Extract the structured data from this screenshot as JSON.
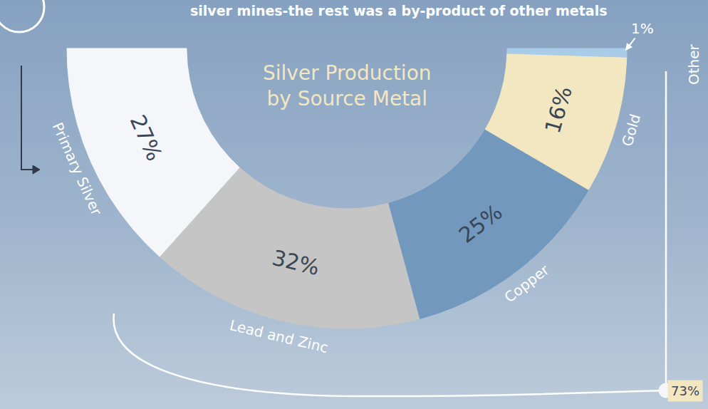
{
  "chart_data": {
    "type": "pie",
    "title": "Silver Production by Source Metal",
    "subtitle": "silver mines-the rest was a by-product of other metals",
    "categories": [
      "Primary Silver",
      "Lead and Zinc",
      "Copper",
      "Gold",
      "Other"
    ],
    "values": [
      27,
      32,
      25,
      16,
      1
    ],
    "value_labels": [
      "27%",
      "32%",
      "25%",
      "16%",
      "1%"
    ],
    "colors": [
      "#f4f6f9",
      "#c5c5c5",
      "#7398bd",
      "#f3e7c1",
      "#a9cde8"
    ],
    "data_labels": true,
    "annotations": [
      "73%"
    ]
  }
}
